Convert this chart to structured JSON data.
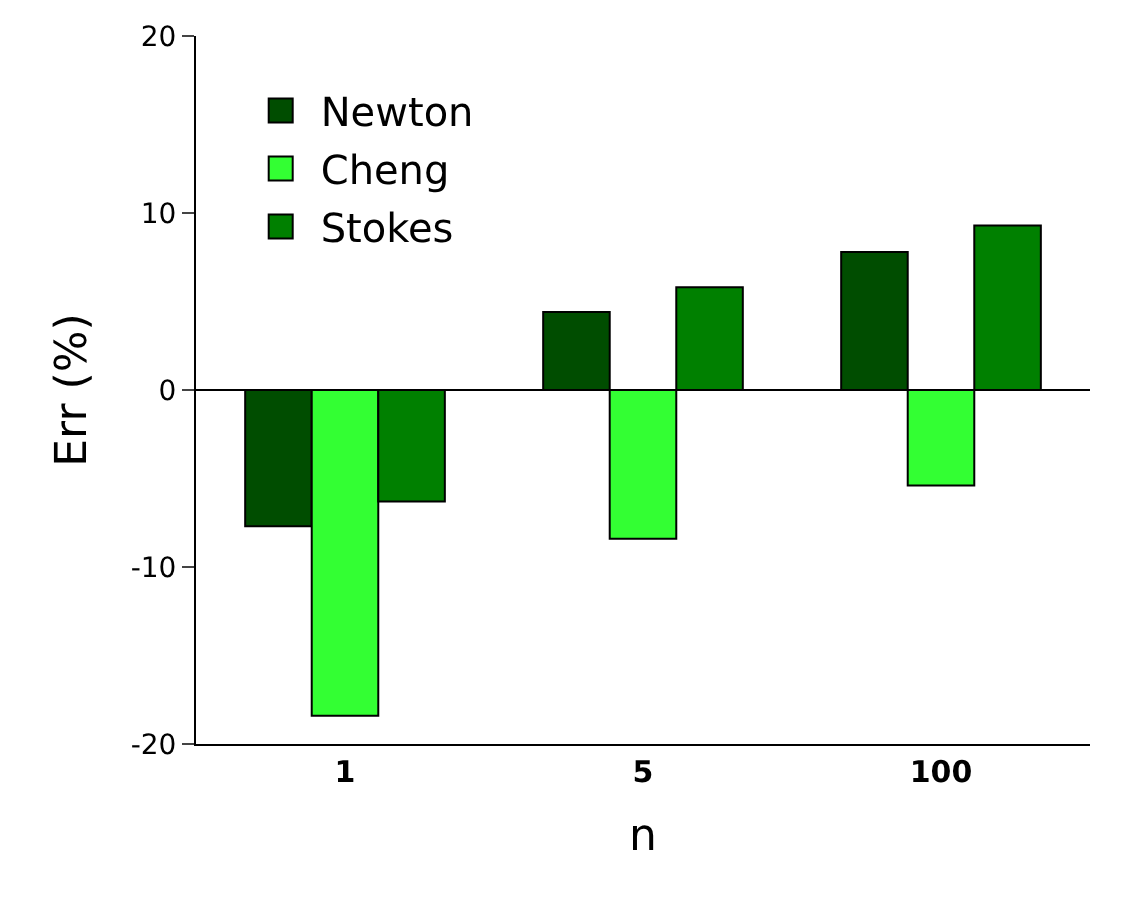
{
  "chart_data": {
    "type": "bar",
    "xlabel": "n",
    "ylabel": "Err (%)",
    "categories": [
      "1",
      "5",
      "100"
    ],
    "series": [
      {
        "name": "Newton",
        "color": "#004d00",
        "values": [
          -7.7,
          4.4,
          7.8
        ]
      },
      {
        "name": "Cheng",
        "color": "#33ff33",
        "values": [
          -18.4,
          -8.4,
          -5.4
        ]
      },
      {
        "name": "Stokes",
        "color": "#008000",
        "values": [
          -6.3,
          5.8,
          9.3
        ]
      }
    ],
    "ylim": [
      -20,
      20
    ],
    "yticks": [
      -20,
      -10,
      0,
      10,
      20
    ],
    "ref_lines": [
      {
        "axis": "y",
        "value": 0,
        "color": "#000000"
      }
    ],
    "legend": "top left"
  }
}
